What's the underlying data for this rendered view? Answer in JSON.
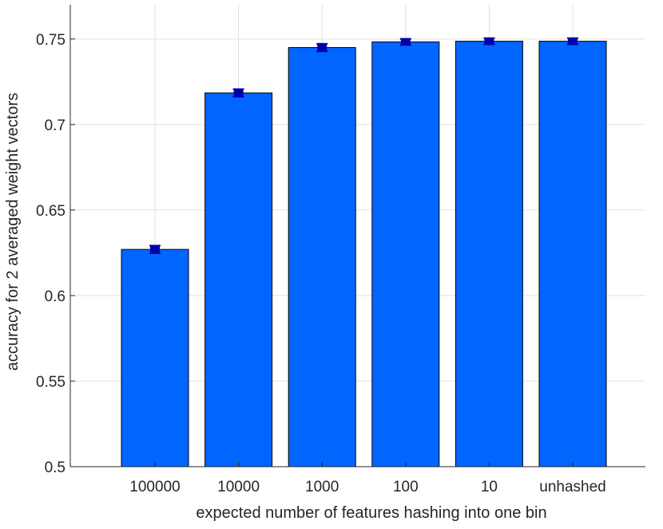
{
  "chart_data": {
    "type": "bar",
    "title": "",
    "xlabel": "expected number of features hashing into one bin",
    "ylabel": "accuracy for 2 averaged weight vectors",
    "categories": [
      "100000",
      "10000",
      "1000",
      "100",
      "10",
      "unhashed"
    ],
    "values": [
      0.627,
      0.7185,
      0.745,
      0.7483,
      0.7487,
      0.7487
    ],
    "errors": [
      0.0022,
      0.0022,
      0.0022,
      0.0018,
      0.0018,
      0.0018
    ],
    "ylim": [
      0.5,
      0.77
    ],
    "yticks": [
      0.5,
      0.55,
      0.6,
      0.65,
      0.7,
      0.75
    ],
    "ytick_labels": [
      "0.5",
      "0.55",
      "0.6",
      "0.65",
      "0.7",
      "0.75"
    ],
    "grid": true,
    "bar_color": "#0066FF",
    "bar_edge_color": "#000000",
    "error_color": "#0000A8",
    "grid_color": "#E0E0E0",
    "axis_color": "#262626"
  }
}
